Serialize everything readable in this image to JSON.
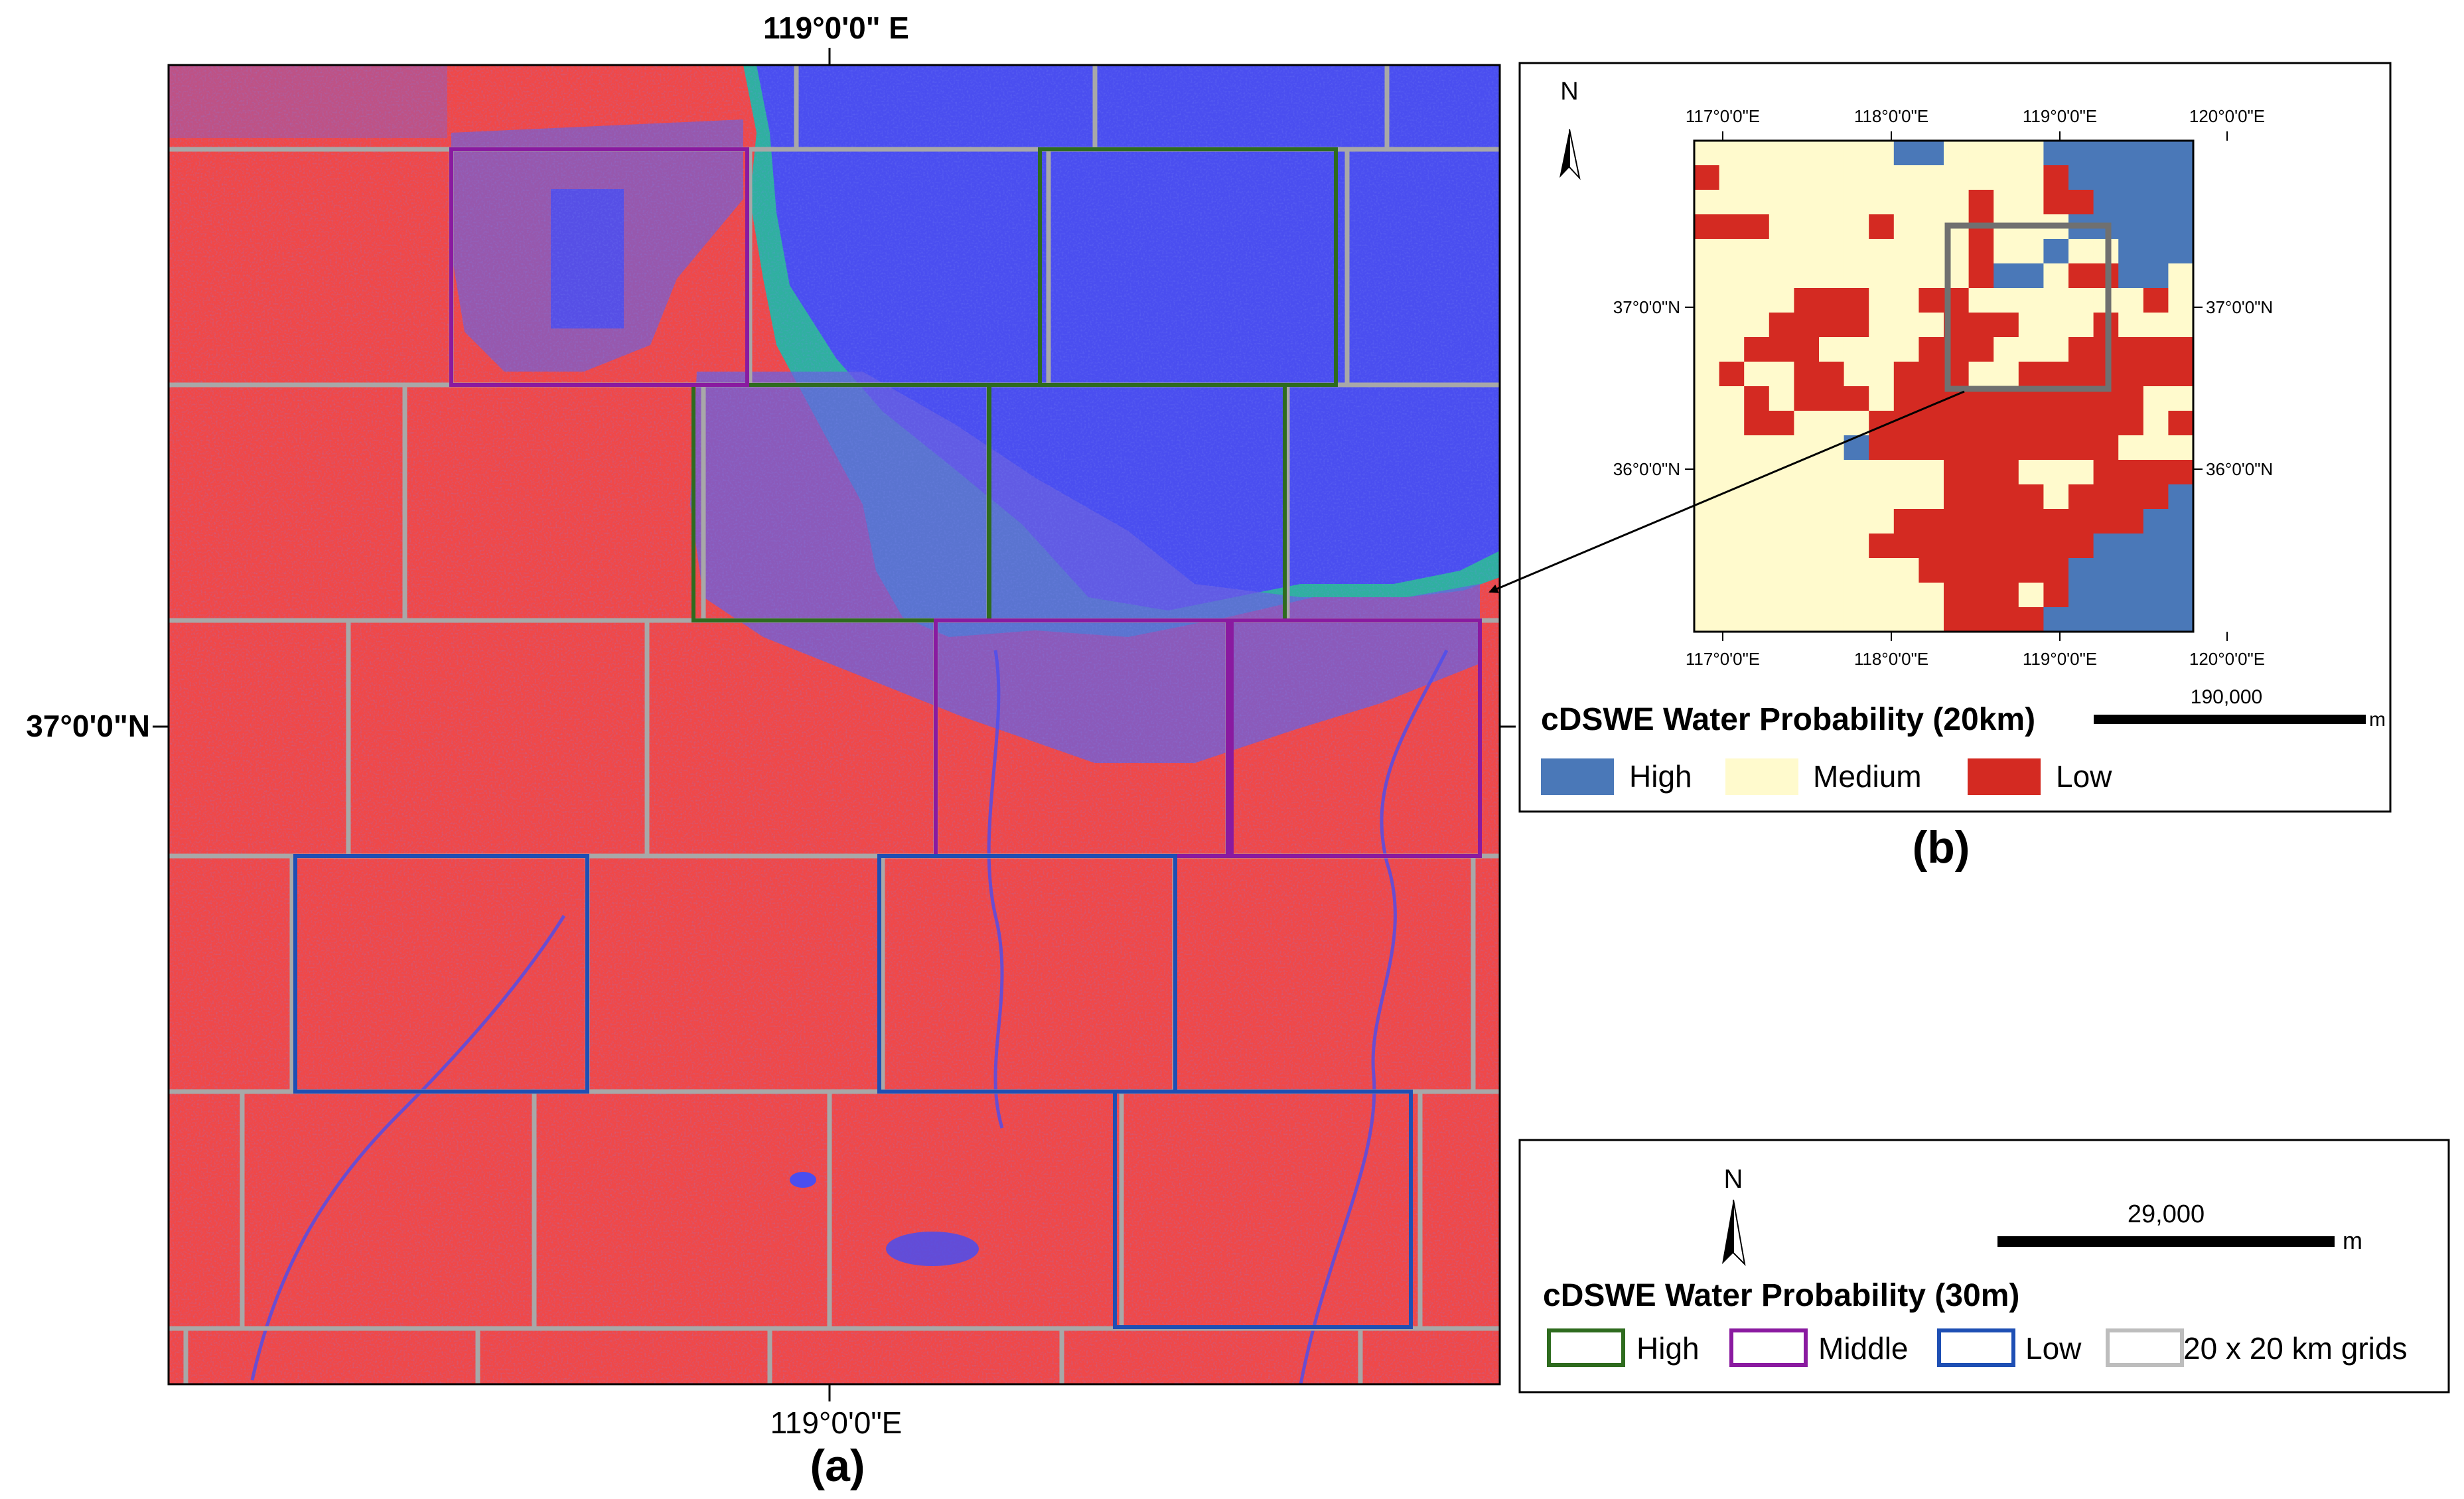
{
  "panel_a": {
    "caption": "(a)",
    "top_coord": "119°0'0\" E",
    "bottom_coord": "119°0'0\"E",
    "left_coord": "37°0'0\"N",
    "legend": {
      "north": "N",
      "scale_value": "29,000",
      "scale_unit": "m",
      "title": "cDSWE Water Probability (30m)",
      "items": [
        {
          "label": "High",
          "color": "#2e6b1e"
        },
        {
          "label": "Middle",
          "color": "#8a1aa0"
        },
        {
          "label": "Low",
          "color": "#1e4fb4"
        },
        {
          "label": "20 x 20 km grids",
          "color": "#bdbdbd"
        }
      ]
    },
    "colors": {
      "land": "#f04848",
      "water": "#4a4ef0",
      "coast": "#2fb0a0",
      "grid": "#a8a8a8"
    }
  },
  "panel_b": {
    "caption": "(b)",
    "north": "N",
    "top_ticks": [
      "117°0'0\"E",
      "118°0'0\"E",
      "119°0'0\"E",
      "120°0'0\"E"
    ],
    "bottom_ticks": [
      "117°0'0\"E",
      "118°0'0\"E",
      "119°0'0\"E",
      "120°0'0\"E"
    ],
    "left_ticks": [
      "37°0'0\"N",
      "36°0'0\"N"
    ],
    "right_ticks": [
      "37°0'0\"N",
      "36°0'0\"N"
    ],
    "scale_value": "190,000",
    "scale_unit": "m",
    "legend_title": "cDSWE Water Probability (20km)",
    "legend_items": [
      {
        "label": "High",
        "color": "#4a78b8"
      },
      {
        "label": "Medium",
        "color": "#fffacd"
      },
      {
        "label": "Low",
        "color": "#d42a22"
      }
    ],
    "grid": [
      "MMMMMMMMHHMMMMHHHHHH",
      "LMMMMMMMMMMMMMLHHHHH",
      "MMMMMMMMMMMLMMLLHHHH",
      "LLLMMMMLMMMLMMMHHHHH",
      "MMMMMMMMMMMLMMHMMHHH",
      "MMMMMMMMMMMLHHMLLHHM",
      "MMMMLLLMMLLMMMMMMMLM",
      "MMMLLLLMMMLLLMMMLMMM",
      "MMLLLMMMMLLLMMMLLLLL",
      "MLMMLLMMLLLMMLLLLLLL",
      "MMLMLLLMLLLLLLLLLLMM",
      "MMLLMMMLLLLLLLLLLLML",
      "MMMMMMHLLLLLLLLLLMMM",
      "MMMMMMMMMMLLLMMMLLLL",
      "MMMMMMMMMMLLLLMLLLLH",
      "MMMMMMMMLLLLLLLLLLHH",
      "MMMMMMMLLLLLLLLLHHHH",
      "MMMMMMMMMLLLLLLHHHHH",
      "MMMMMMMMMMLLLMLHHHHH",
      "MMMMMMMMMMLLLLHHHHHH"
    ]
  }
}
